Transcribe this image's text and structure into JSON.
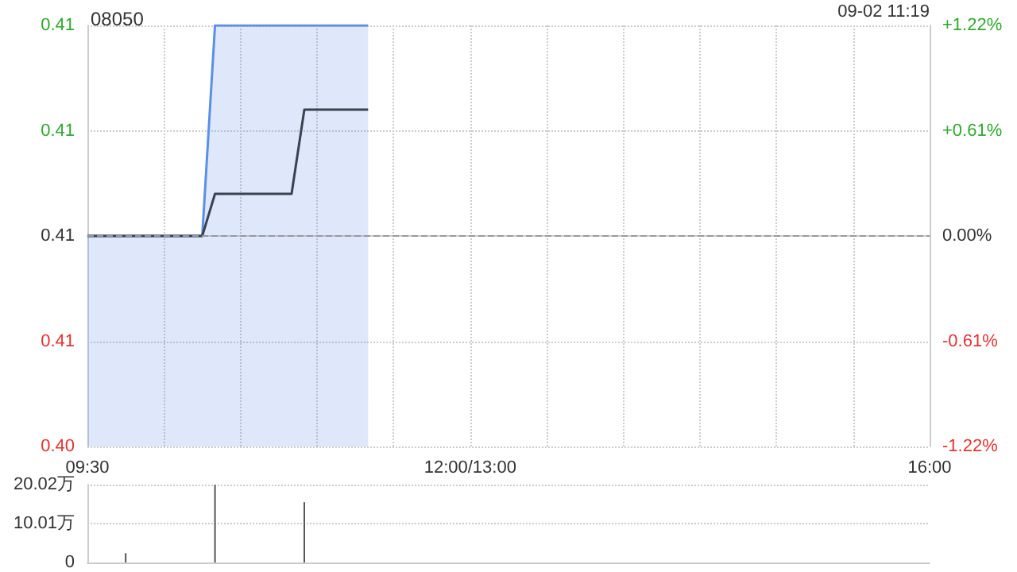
{
  "chart_data": [
    {
      "type": "line",
      "title": "08050",
      "annotations": [
        "09-02 11:19"
      ],
      "categories": [
        "09:30",
        null,
        null,
        null,
        null,
        null,
        null,
        null,
        null,
        null,
        null,
        null,
        null,
        null,
        null,
        null,
        null,
        null,
        null,
        null,
        null,
        null,
        null,
        null,
        null,
        null,
        null,
        null,
        null,
        null,
        "12:00/13:00",
        null,
        null,
        null,
        null,
        null,
        null,
        null,
        null,
        null,
        null,
        null,
        null,
        null,
        null,
        null,
        null,
        null,
        null,
        null,
        null,
        null,
        null,
        null,
        null,
        null,
        null,
        null,
        null,
        null,
        null,
        null,
        null,
        null,
        null,
        null,
        "16:00"
      ],
      "ylim": [
        0.405,
        0.415
      ],
      "yticks": [
        {
          "value": 0.405,
          "label": "0.40"
        },
        {
          "value": 0.4075,
          "label": "0.41"
        },
        {
          "value": 0.41,
          "label": "0.41"
        },
        {
          "value": 0.4125,
          "label": "0.41"
        },
        {
          "value": 0.415,
          "label": "0.41"
        }
      ],
      "y2lim": [
        -1.22,
        1.22
      ],
      "y2ticks": [
        {
          "value": -1.22,
          "label": "-1.22%"
        },
        {
          "value": -0.61,
          "label": "-0.61%"
        },
        {
          "value": 0,
          "label": "0.00%"
        },
        {
          "value": 0.61,
          "label": "+0.61%"
        },
        {
          "value": 1.22,
          "label": "+1.22%"
        }
      ],
      "ref_lines": [
        {
          "axis": "y",
          "value": 0.41,
          "color": "#999999",
          "line_style": "dashed"
        }
      ],
      "grid": true,
      "series": [
        {
          "type": "area",
          "color": "#5b8ee6",
          "values": [
            0.41,
            0.41,
            0.41,
            0.41,
            0.41,
            0.41,
            0.41,
            0.41,
            0.41,
            0.41,
            0.415,
            0.415,
            0.415,
            0.415,
            0.415,
            0.415,
            0.415,
            0.415,
            0.415,
            0.415,
            0.415,
            0.415,
            0.415,
            null,
            null,
            null,
            null,
            null,
            null,
            null,
            null,
            null,
            null,
            null,
            null,
            null,
            null,
            null,
            null,
            null,
            null,
            null,
            null,
            null,
            null,
            null,
            null,
            null,
            null,
            null,
            null,
            null,
            null,
            null,
            null,
            null,
            null,
            null,
            null,
            null,
            null,
            null,
            null,
            null,
            null,
            null,
            null
          ]
        },
        {
          "type": "line",
          "color": "#3a4250",
          "values": [
            0.41,
            0.41,
            0.41,
            0.41,
            0.41,
            0.41,
            0.41,
            0.41,
            0.41,
            0.41,
            0.411,
            0.411,
            0.411,
            0.411,
            0.411,
            0.411,
            0.411,
            0.413,
            0.413,
            0.413,
            0.413,
            0.413,
            0.413,
            null,
            null,
            null,
            null,
            null,
            null,
            null,
            null,
            null,
            null,
            null,
            null,
            null,
            null,
            null,
            null,
            null,
            null,
            null,
            null,
            null,
            null,
            null,
            null,
            null,
            null,
            null,
            null,
            null,
            null,
            null,
            null,
            null,
            null,
            null,
            null,
            null,
            null,
            null,
            null,
            null,
            null,
            null,
            null
          ]
        }
      ]
    },
    {
      "type": "bar",
      "categories": [
        null,
        null,
        null,
        null,
        null,
        null,
        null,
        null,
        null,
        null,
        null,
        null,
        null,
        null,
        null,
        null,
        null,
        null,
        null,
        null,
        null,
        null,
        null,
        null,
        null,
        null,
        null,
        null,
        null,
        null,
        null,
        null,
        null,
        null,
        null,
        null,
        null,
        null,
        null,
        null,
        null,
        null,
        null,
        null,
        null,
        null,
        null,
        null,
        null,
        null,
        null,
        null,
        null,
        null,
        null,
        null,
        null,
        null,
        null,
        null,
        null,
        null,
        null,
        null,
        null,
        null,
        null
      ],
      "values": [
        null,
        null,
        null,
        2.4,
        null,
        null,
        null,
        null,
        null,
        null,
        20,
        null,
        null,
        null,
        null,
        null,
        null,
        15.5,
        null,
        null,
        null,
        null,
        null,
        null,
        null,
        null,
        null,
        null,
        null,
        null,
        null,
        null,
        null,
        null,
        null,
        null,
        null,
        null,
        null,
        null,
        null,
        null,
        null,
        null,
        null,
        null,
        null,
        null,
        null,
        null,
        null,
        null,
        null,
        null,
        null,
        null,
        null,
        null,
        null,
        null,
        null,
        null,
        null,
        null,
        null,
        null,
        null
      ],
      "color": "#555555",
      "ylim": [
        0,
        20.02
      ],
      "yticks": [
        0,
        {
          "value": 10.01,
          "label": "10.01万"
        },
        {
          "value": 20.02,
          "label": "20.02万"
        }
      ],
      "grid": "y",
      "tick_labels": "y"
    }
  ]
}
